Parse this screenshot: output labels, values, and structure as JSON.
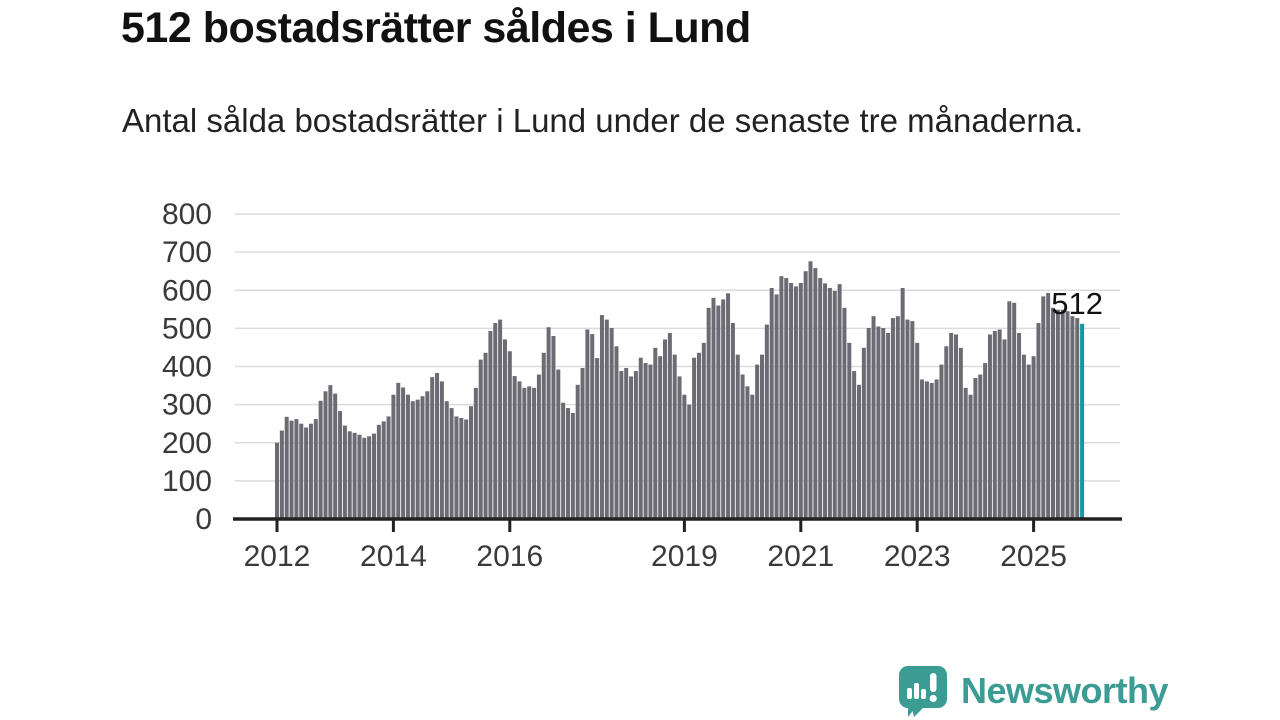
{
  "header": {
    "title": "512 bostadsrätter såldes i Lund",
    "subtitle": "Antal sålda bostadsrätter i Lund under de senaste tre månaderna."
  },
  "chart_data": {
    "type": "bar",
    "title": "512 bostadsrätter såldes i Lund",
    "ylabel": "",
    "xlabel": "",
    "ylim": [
      0,
      800
    ],
    "yticks": [
      0,
      100,
      200,
      300,
      400,
      500,
      600,
      700,
      800
    ],
    "xticks": [
      2012,
      2014,
      2016,
      2019,
      2021,
      2023,
      2025
    ],
    "grid": true,
    "x_frequency": "monthly",
    "x_start": "2012-01",
    "x_end": "2025-11",
    "annotation": {
      "label": "512",
      "index": 166
    },
    "bar_color": "#6c6b74",
    "highlight_color": "#0e9aa0",
    "grid_color": "#dcdcdc",
    "axis_color": "#222222",
    "tick_label_color": "#3a3a3a",
    "values": [
      200,
      232,
      268,
      258,
      262,
      250,
      240,
      250,
      262,
      310,
      335,
      351,
      329,
      283,
      245,
      230,
      226,
      221,
      213,
      217,
      224,
      247,
      256,
      269,
      326,
      357,
      345,
      326,
      309,
      313,
      322,
      335,
      372,
      383,
      361,
      309,
      291,
      269,
      265,
      261,
      296,
      344,
      418,
      436,
      493,
      514,
      523,
      471,
      440,
      375,
      361,
      344,
      348,
      344,
      379,
      436,
      503,
      480,
      392,
      305,
      291,
      278,
      352,
      396,
      497,
      485,
      422,
      535,
      523,
      501,
      453,
      388,
      396,
      374,
      388,
      423,
      409,
      405,
      449,
      427,
      471,
      488,
      431,
      374,
      326,
      300,
      423,
      436,
      462,
      554,
      580,
      560,
      576,
      592,
      514,
      431,
      379,
      348,
      326,
      405,
      431,
      510,
      606,
      589,
      637,
      632,
      619,
      610,
      619,
      650,
      676,
      658,
      632,
      618,
      606,
      598,
      616,
      554,
      462,
      388,
      352,
      449,
      501,
      532,
      505,
      501,
      488,
      527,
      532,
      606,
      523,
      519,
      462,
      366,
      361,
      357,
      366,
      405,
      453,
      488,
      484,
      449,
      344,
      326,
      370,
      379,
      409,
      484,
      493,
      497,
      471,
      571,
      567,
      488,
      431,
      405,
      427,
      514,
      584,
      593,
      554,
      549,
      549,
      545,
      532,
      527,
      512
    ]
  },
  "footer": {
    "brand": "Newsworthy",
    "brand_color": "#3b9c93",
    "logo_icon": "bar-chart-speech-bubble-icon"
  }
}
